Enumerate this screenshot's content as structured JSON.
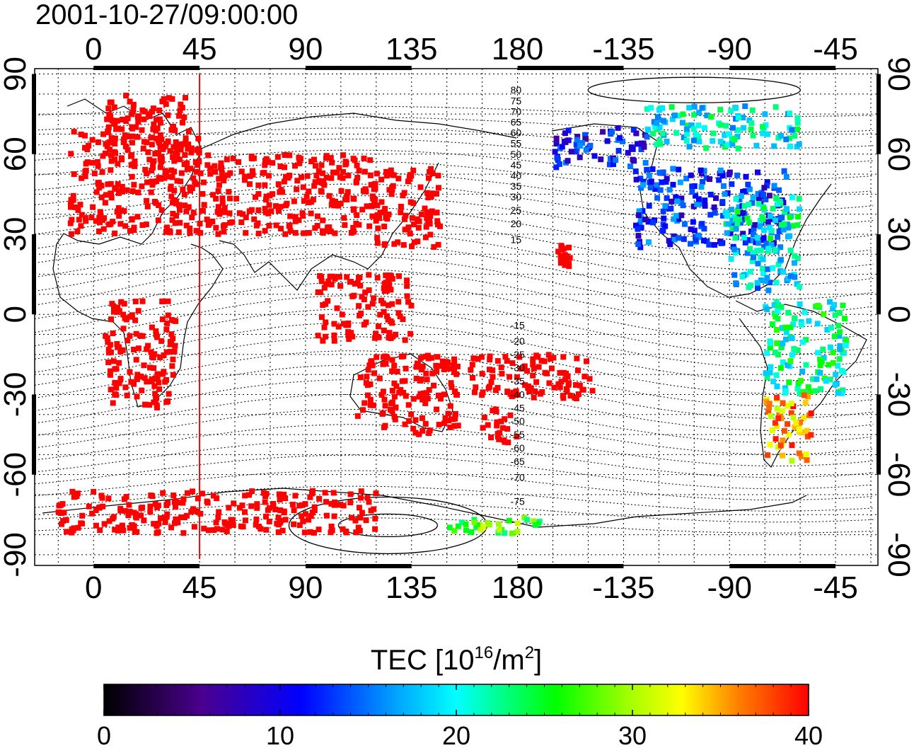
{
  "title": "2001-10-27/09:00:00",
  "map": {
    "type": "heatmap",
    "projection": "equirectangular",
    "grid": true,
    "x_axis": {
      "top_ticks": [
        "0",
        "45",
        "90",
        "135",
        "180",
        "-135",
        "-90",
        "-45"
      ],
      "bottom_ticks": [
        "0",
        "45",
        "90",
        "135",
        "180",
        "-135",
        "-90",
        "-45"
      ],
      "tick_values_deg": [
        0,
        45,
        90,
        135,
        180,
        225,
        270,
        315
      ],
      "range_deg": [
        -25,
        333
      ]
    },
    "y_axis": {
      "left_ticks": [
        "90",
        "60",
        "30",
        "0",
        "-30",
        "-60",
        "-90"
      ],
      "right_ticks": [
        "90",
        "60",
        "30",
        "0",
        "-30",
        "-60",
        "-90"
      ],
      "tick_values_deg": [
        90,
        60,
        30,
        0,
        -30,
        -60,
        -90
      ],
      "range_deg": [
        -94,
        92
      ]
    },
    "meridian_marker_lon": 45,
    "meridian_marker_color": "#ff0000",
    "contour_labels": [
      "80",
      "75",
      "70",
      "65",
      "60",
      "55",
      "50",
      "45",
      "40",
      "35",
      "30",
      "25",
      "20",
      "15",
      "-15",
      "-20",
      "-25",
      "-30",
      "-35",
      "-40",
      "-45",
      "-50",
      "-55",
      "-60",
      "-65",
      "-70",
      "-75"
    ],
    "data_regions": [
      {
        "name": "europe",
        "tec": 40,
        "lon_min": -10,
        "lon_max": 45,
        "lat_min": 30,
        "lat_max": 70
      },
      {
        "name": "north-europe",
        "tec": 40,
        "lon_min": 5,
        "lon_max": 40,
        "lat_min": 60,
        "lat_max": 82
      },
      {
        "name": "japan-east-asia",
        "tec": 40,
        "lon_min": 118,
        "lon_max": 148,
        "lat_min": 25,
        "lat_max": 55
      },
      {
        "name": "central-asia",
        "tec": 40,
        "lon_min": 45,
        "lon_max": 120,
        "lat_min": 30,
        "lat_max": 60
      },
      {
        "name": "indonesia",
        "tec": 40,
        "lon_min": 95,
        "lon_max": 135,
        "lat_min": -10,
        "lat_max": 15
      },
      {
        "name": "australia",
        "tec": 40,
        "lon_min": 112,
        "lon_max": 155,
        "lat_min": -45,
        "lat_max": -15
      },
      {
        "name": "new-zealand",
        "tec": 40,
        "lon_min": 165,
        "lon_max": 180,
        "lat_min": -48,
        "lat_max": -35
      },
      {
        "name": "south-pacific",
        "tec": 40,
        "lon_min": 160,
        "lon_max": 212,
        "lat_min": -32,
        "lat_max": -15
      },
      {
        "name": "hawaii",
        "tec": 40,
        "lon_min": 197,
        "lon_max": 205,
        "lat_min": 18,
        "lat_max": 26
      },
      {
        "name": "africa",
        "tec": 40,
        "lon_min": 5,
        "lon_max": 35,
        "lat_min": -35,
        "lat_max": 5
      },
      {
        "name": "antarctica-rim",
        "tec": 40,
        "lon_min": -15,
        "lon_max": 120,
        "lat_min": -82,
        "lat_max": -66
      },
      {
        "name": "north-america",
        "tec": 12,
        "lon_min": 230,
        "lon_max": 295,
        "lat_min": 25,
        "lat_max": 55
      },
      {
        "name": "north-america-east",
        "tec": 21,
        "lon_min": 268,
        "lon_max": 300,
        "lat_min": 28,
        "lat_max": 45
      },
      {
        "name": "alaska",
        "tec": 11,
        "lon_min": 195,
        "lon_max": 235,
        "lat_min": 55,
        "lat_max": 70
      },
      {
        "name": "arctic-canada",
        "tec": 20,
        "lon_min": 235,
        "lon_max": 300,
        "lat_min": 62,
        "lat_max": 78
      },
      {
        "name": "caribbean",
        "tec": 18,
        "lon_min": 270,
        "lon_max": 300,
        "lat_min": 8,
        "lat_max": 25
      },
      {
        "name": "south-america",
        "tec": 22,
        "lon_min": 285,
        "lon_max": 320,
        "lat_min": -30,
        "lat_max": 5
      },
      {
        "name": "patagonia",
        "tec": 35,
        "lon_min": 285,
        "lon_max": 305,
        "lat_min": -55,
        "lat_max": -30
      },
      {
        "name": "antarctic-coast-east",
        "tec": 27,
        "lon_min": 150,
        "lon_max": 190,
        "lat_min": -82,
        "lat_max": -75
      }
    ]
  },
  "colorbar": {
    "label_main": "TEC  [10",
    "label_sup1": "16",
    "label_mid": "/m",
    "label_sup2": "2",
    "label_end": "]",
    "min": 0,
    "max": 40,
    "ticks": [
      "0",
      "10",
      "20",
      "30",
      "40"
    ],
    "colormap": [
      "#000000",
      "#4a0090",
      "#0000ff",
      "#00ffff",
      "#00ff00",
      "#ffff00",
      "#ff8000",
      "#ff0000"
    ]
  }
}
